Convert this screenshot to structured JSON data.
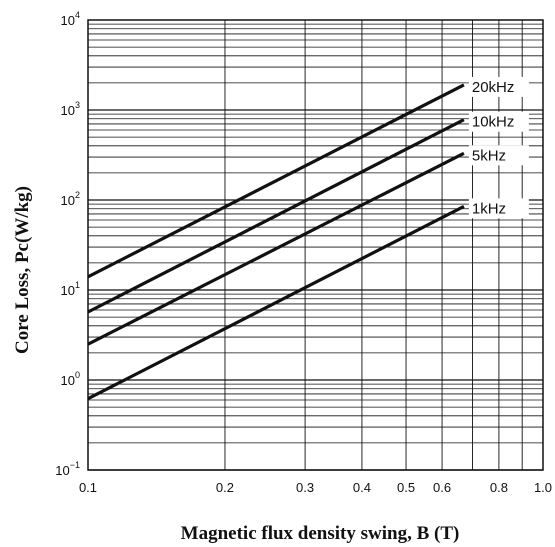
{
  "chart_data": {
    "type": "line",
    "title": "",
    "xlabel": "Magnetic flux density swing, B (T)",
    "ylabel": "Core Loss, Pc(W/kg)",
    "xscale": "log",
    "yscale": "log",
    "xlim": [
      0.1,
      1.0
    ],
    "ylim": [
      0.1,
      10000
    ],
    "grid": true,
    "x_ticks": [
      {
        "value": 0.1,
        "label": "0.1"
      },
      {
        "value": 0.2,
        "label": "0.2"
      },
      {
        "value": 0.3,
        "label": "0.3"
      },
      {
        "value": 0.4,
        "label": "0.4"
      },
      {
        "value": 0.5,
        "label": "0.5"
      },
      {
        "value": 0.6,
        "label": "0.6"
      },
      {
        "value": 0.8,
        "label": "0.8"
      },
      {
        "value": 1.0,
        "label": "1.0"
      }
    ],
    "y_ticks": [
      {
        "value": 0.1,
        "base": "10",
        "exp": "−1"
      },
      {
        "value": 1,
        "base": "10",
        "exp": "0"
      },
      {
        "value": 10,
        "base": "10",
        "exp": "1"
      },
      {
        "value": 100,
        "base": "10",
        "exp": "2"
      },
      {
        "value": 1000,
        "base": "10",
        "exp": "3"
      },
      {
        "value": 10000,
        "base": "10",
        "exp": "4"
      }
    ],
    "series": [
      {
        "name": "20kHz",
        "x": [
          0.1,
          0.67
        ],
        "y": [
          14,
          1900
        ]
      },
      {
        "name": "10kHz",
        "x": [
          0.1,
          0.67
        ],
        "y": [
          5.7,
          780
        ]
      },
      {
        "name": "5kHz",
        "x": [
          0.1,
          0.67
        ],
        "y": [
          2.5,
          330
        ]
      },
      {
        "name": "1kHz",
        "x": [
          0.1,
          0.67
        ],
        "y": [
          0.62,
          85
        ]
      }
    ],
    "colors": {
      "line": "#111111",
      "grid": "#111111",
      "background": "#ffffff"
    }
  }
}
